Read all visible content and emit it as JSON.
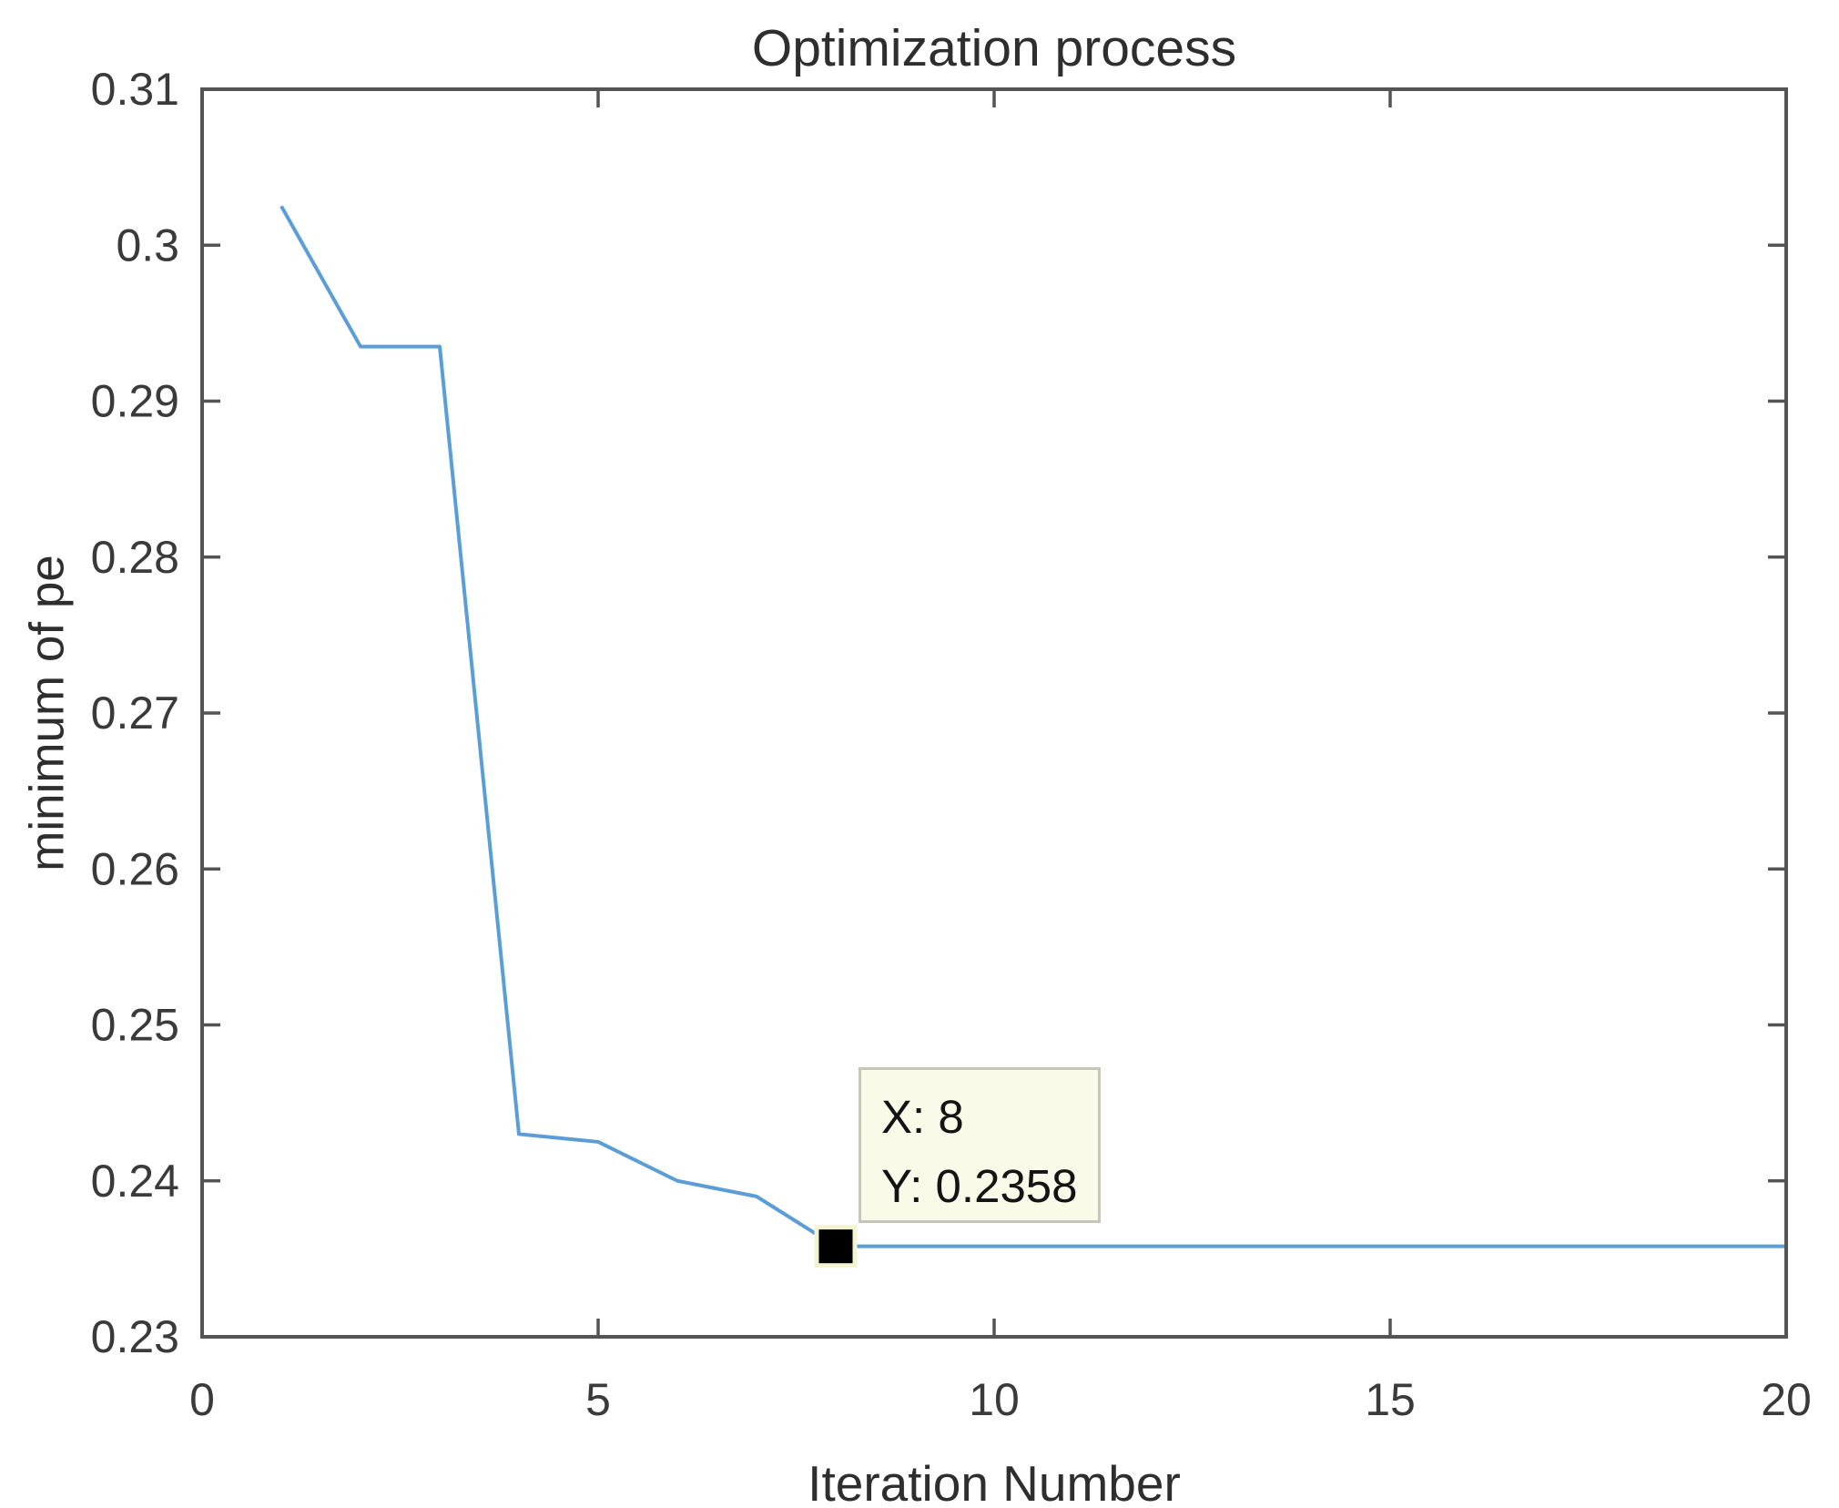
{
  "chart_data": {
    "type": "line",
    "title": "Optimization process",
    "xlabel": "Iteration Number",
    "ylabel": "minimum of pe",
    "xlim": [
      0,
      20
    ],
    "ylim": [
      0.23,
      0.31
    ],
    "grid": false,
    "legend_position": "none",
    "x_ticks": [
      0,
      5,
      10,
      15,
      20
    ],
    "x_tick_labels": [
      "0",
      "5",
      "10",
      "15",
      "20"
    ],
    "y_ticks": [
      0.23,
      0.24,
      0.25,
      0.26,
      0.27,
      0.28,
      0.29,
      0.3,
      0.31
    ],
    "y_tick_labels": [
      "0.23",
      "0.24",
      "0.25",
      "0.26",
      "0.27",
      "0.28",
      "0.29",
      "0.3",
      "0.31"
    ],
    "series": [
      {
        "name": "minimum of pe",
        "x": [
          1,
          2,
          3,
          4,
          5,
          6,
          7,
          8,
          9,
          10,
          11,
          12,
          13,
          14,
          15,
          16,
          17,
          18,
          19,
          20
        ],
        "y": [
          0.3025,
          0.2935,
          0.2935,
          0.243,
          0.2425,
          0.24,
          0.239,
          0.2358,
          0.2358,
          0.2358,
          0.2358,
          0.2358,
          0.2358,
          0.2358,
          0.2358,
          0.2358,
          0.2358,
          0.2358,
          0.2358,
          0.2358
        ],
        "color": "#5b9dd6"
      }
    ],
    "datatip": {
      "x": 8,
      "y": 0.2358,
      "line1": "X: 8",
      "line2": "Y: 0.2358",
      "marker_color": "#000000",
      "marker_outline": "#f4f4d0",
      "bg": "#fafae8",
      "border": "#c6c6b8"
    }
  },
  "colors": {
    "axis": "#545454",
    "tick_text": "#3a3a3a"
  }
}
